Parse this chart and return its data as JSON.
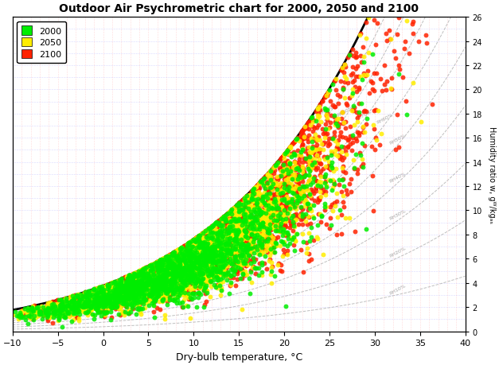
{
  "title": "Outdoor Air Psychrometric chart for 2000, 2050 and 2100",
  "xlabel": "Dry-bulb temperature, °C",
  "ylabel": "Humidity ratio w, gᵂ/kgₐₛ",
  "xlim": [
    -10,
    40
  ],
  "ylim": [
    0,
    26
  ],
  "xticks": [
    -10,
    -5,
    0,
    5,
    10,
    15,
    20,
    25,
    30,
    35,
    40
  ],
  "yticks": [
    0,
    2,
    4,
    6,
    8,
    10,
    12,
    14,
    16,
    18,
    20,
    22,
    24,
    26
  ],
  "legend_labels": [
    "2000",
    "2050",
    "2100"
  ],
  "legend_colors": [
    "#00ee00",
    "#ffee00",
    "#ff2200"
  ],
  "scatter_alpha": 0.85,
  "dot_size": 18,
  "grid_color_vertical": "#ff8888",
  "grid_color_horizontal": "#8888ff",
  "rh_line_color": "#aaaaaa",
  "saturation_color": "#000000",
  "background_color": "#ffffff",
  "n_points_2000": 2000,
  "n_points_2050": 2000,
  "n_points_2100": 2500
}
